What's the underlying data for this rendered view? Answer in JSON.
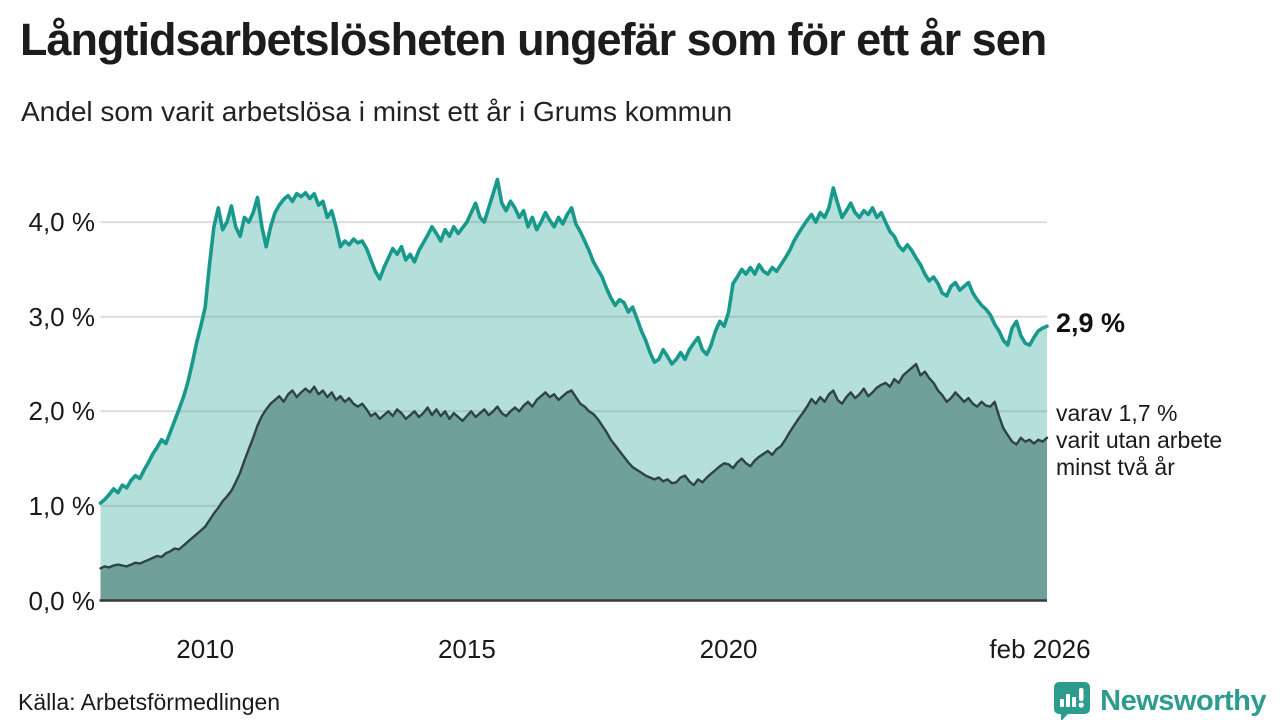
{
  "header": {
    "title": "Långtidsarbetslösheten ungefär som för ett år sen",
    "subtitle": "Andel som varit arbetslösa i minst ett år i Grums kommun"
  },
  "annotations": {
    "total_end_label": "2,9 %",
    "dark_end_label_lines": [
      "varav 1,7 %",
      "varit utan arbete",
      "minst två år"
    ]
  },
  "footer": {
    "source": "Källa: Arbetsförmedlingen",
    "brand": "Newsworthy"
  },
  "colors": {
    "accent_teal": "#18998b",
    "light_fill": "rgba(25,154,140,0.32)",
    "dark_line": "#2f4347",
    "dark_fill": "#6fa09a",
    "gridline": "#dddde2",
    "axis": "#3a3a3a",
    "brand_teal": "#2d9c8e"
  },
  "chart_data": {
    "type": "area",
    "unit": "%",
    "x_monthly_start": "2008-01",
    "x_monthly_end": "2026-02",
    "ylim": [
      0,
      4.55
    ],
    "grid": true,
    "legend_position": "none",
    "yticks": [
      {
        "value": 0,
        "label": "0,0 %"
      },
      {
        "value": 1,
        "label": "1,0 %"
      },
      {
        "value": 2,
        "label": "2,0 %"
      },
      {
        "value": 3,
        "label": "3,0 %"
      },
      {
        "value": 4,
        "label": "4,0 %"
      }
    ],
    "xticks": [
      {
        "index": 24,
        "label": "2010"
      },
      {
        "index": 84,
        "label": "2015"
      },
      {
        "index": 144,
        "label": "2020"
      },
      {
        "index": 217,
        "label": "feb 2026"
      }
    ],
    "series": [
      {
        "name": "Arbetslösa minst ett år",
        "end_value": 2.9,
        "values": [
          1.03,
          1.07,
          1.12,
          1.18,
          1.14,
          1.22,
          1.19,
          1.27,
          1.32,
          1.29,
          1.38,
          1.46,
          1.55,
          1.62,
          1.7,
          1.66,
          1.78,
          1.9,
          2.02,
          2.15,
          2.3,
          2.5,
          2.72,
          2.9,
          3.1,
          3.55,
          3.95,
          4.15,
          3.92,
          4.0,
          4.17,
          3.95,
          3.85,
          4.05,
          4.0,
          4.1,
          4.26,
          3.95,
          3.74,
          3.95,
          4.1,
          4.18,
          4.24,
          4.28,
          4.22,
          4.3,
          4.27,
          4.31,
          4.25,
          4.3,
          4.18,
          4.22,
          4.05,
          4.12,
          3.95,
          3.74,
          3.8,
          3.76,
          3.82,
          3.78,
          3.8,
          3.72,
          3.6,
          3.48,
          3.4,
          3.52,
          3.62,
          3.72,
          3.66,
          3.74,
          3.6,
          3.66,
          3.58,
          3.7,
          3.78,
          3.86,
          3.95,
          3.88,
          3.8,
          3.92,
          3.85,
          3.95,
          3.88,
          3.94,
          4.0,
          4.1,
          4.2,
          4.05,
          4.0,
          4.15,
          4.3,
          4.45,
          4.2,
          4.12,
          4.22,
          4.15,
          4.05,
          4.12,
          3.95,
          4.05,
          3.92,
          4.0,
          4.1,
          4.02,
          3.95,
          4.05,
          3.98,
          4.08,
          4.15,
          3.98,
          3.9,
          3.8,
          3.7,
          3.58,
          3.5,
          3.42,
          3.3,
          3.2,
          3.12,
          3.18,
          3.15,
          3.05,
          3.1,
          2.98,
          2.85,
          2.75,
          2.62,
          2.52,
          2.55,
          2.65,
          2.58,
          2.5,
          2.55,
          2.62,
          2.55,
          2.65,
          2.72,
          2.78,
          2.65,
          2.6,
          2.7,
          2.85,
          2.95,
          2.9,
          3.05,
          3.35,
          3.42,
          3.5,
          3.45,
          3.52,
          3.45,
          3.55,
          3.48,
          3.45,
          3.52,
          3.48,
          3.55,
          3.62,
          3.7,
          3.8,
          3.88,
          3.95,
          4.02,
          4.08,
          4.0,
          4.1,
          4.05,
          4.15,
          4.36,
          4.2,
          4.05,
          4.12,
          4.2,
          4.1,
          4.05,
          4.12,
          4.08,
          4.15,
          4.05,
          4.1,
          4.0,
          3.9,
          3.85,
          3.75,
          3.7,
          3.76,
          3.7,
          3.62,
          3.55,
          3.45,
          3.38,
          3.42,
          3.35,
          3.25,
          3.22,
          3.32,
          3.36,
          3.28,
          3.32,
          3.36,
          3.25,
          3.18,
          3.12,
          3.08,
          3.02,
          2.92,
          2.85,
          2.75,
          2.7,
          2.88,
          2.95,
          2.8,
          2.72,
          2.7,
          2.78,
          2.85,
          2.88,
          2.9
        ]
      },
      {
        "name": "varav utan arbete minst två år",
        "end_value": 1.7,
        "values": [
          0.34,
          0.36,
          0.35,
          0.37,
          0.38,
          0.37,
          0.36,
          0.38,
          0.4,
          0.39,
          0.41,
          0.43,
          0.45,
          0.47,
          0.46,
          0.5,
          0.52,
          0.55,
          0.54,
          0.58,
          0.62,
          0.66,
          0.7,
          0.74,
          0.78,
          0.85,
          0.92,
          0.98,
          1.05,
          1.1,
          1.16,
          1.25,
          1.35,
          1.48,
          1.6,
          1.72,
          1.85,
          1.95,
          2.02,
          2.08,
          2.12,
          2.16,
          2.1,
          2.18,
          2.22,
          2.15,
          2.2,
          2.24,
          2.2,
          2.26,
          2.18,
          2.22,
          2.15,
          2.2,
          2.12,
          2.16,
          2.1,
          2.14,
          2.08,
          2.05,
          2.08,
          2.02,
          1.95,
          1.98,
          1.92,
          1.96,
          2.0,
          1.95,
          2.02,
          1.98,
          1.92,
          1.96,
          2.0,
          1.94,
          1.98,
          2.04,
          1.96,
          2.02,
          1.95,
          2.0,
          1.92,
          1.98,
          1.94,
          1.9,
          1.95,
          2.0,
          1.94,
          1.98,
          2.02,
          1.96,
          2.0,
          2.05,
          1.98,
          1.95,
          2.0,
          2.04,
          2.0,
          2.06,
          2.1,
          2.05,
          2.12,
          2.16,
          2.2,
          2.15,
          2.18,
          2.12,
          2.16,
          2.2,
          2.22,
          2.15,
          2.08,
          2.05,
          2.0,
          1.97,
          1.92,
          1.85,
          1.78,
          1.7,
          1.64,
          1.58,
          1.52,
          1.46,
          1.41,
          1.38,
          1.35,
          1.32,
          1.3,
          1.28,
          1.3,
          1.26,
          1.28,
          1.24,
          1.25,
          1.3,
          1.32,
          1.26,
          1.22,
          1.28,
          1.25,
          1.3,
          1.34,
          1.38,
          1.42,
          1.45,
          1.44,
          1.4,
          1.46,
          1.5,
          1.45,
          1.42,
          1.48,
          1.52,
          1.55,
          1.58,
          1.54,
          1.6,
          1.63,
          1.7,
          1.78,
          1.85,
          1.92,
          1.98,
          2.05,
          2.13,
          2.08,
          2.15,
          2.1,
          2.18,
          2.22,
          2.12,
          2.08,
          2.15,
          2.2,
          2.14,
          2.18,
          2.24,
          2.16,
          2.2,
          2.25,
          2.28,
          2.3,
          2.26,
          2.34,
          2.3,
          2.38,
          2.42,
          2.46,
          2.5,
          2.38,
          2.42,
          2.35,
          2.3,
          2.22,
          2.17,
          2.1,
          2.14,
          2.2,
          2.15,
          2.1,
          2.14,
          2.08,
          2.05,
          2.1,
          2.06,
          2.05,
          2.1,
          1.95,
          1.82,
          1.75,
          1.68,
          1.65,
          1.72,
          1.68,
          1.7,
          1.66,
          1.7,
          1.68,
          1.72
        ]
      }
    ]
  }
}
